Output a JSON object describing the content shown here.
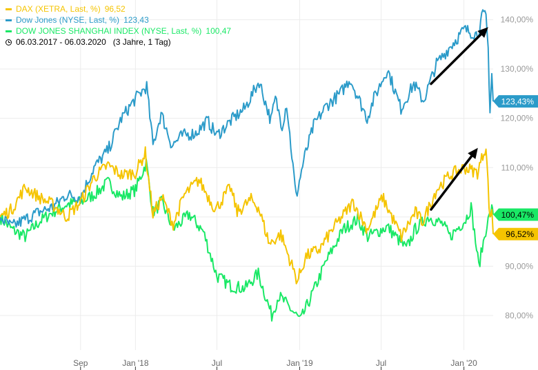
{
  "legend": {
    "items": [
      {
        "label": "DAX (XETRA, Last, %)",
        "value": "96,52",
        "color": "#f5c400"
      },
      {
        "label": "Dow Jones (NYSE, Last, %)",
        "value": "123,43",
        "color": "#2b9bc9"
      },
      {
        "label": "DOW JONES SHANGHAI INDEX (NYSE, Last, %)",
        "value": "100,47",
        "color": "#19e865"
      }
    ],
    "period": "06.03.2017 - 06.03.2020",
    "range": "(3 Jahre, 1 Tag)"
  },
  "chart_data": {
    "type": "line",
    "x_axis_labels": [
      "Sep",
      "Jan '18",
      "Jul",
      "Jan '19",
      "Jul",
      "Jan '20"
    ],
    "x_axis_dates": [
      "2017-09-01",
      "2018-01-01",
      "2018-07-01",
      "2019-01-01",
      "2019-07-01",
      "2020-01-01"
    ],
    "x_range": [
      "2017-03-06",
      "2020-03-06"
    ],
    "y_ticks": [
      80,
      90,
      100,
      110,
      120,
      130,
      140
    ],
    "y_tick_labels": [
      "80,00%",
      "90,00%",
      "100,00%",
      "110,00%",
      "120,00%",
      "130,00%",
      "140,00%"
    ],
    "y_range": [
      73,
      144
    ],
    "grid": true,
    "legend_position": "top-left",
    "series": [
      {
        "name": "Dow Jones (NYSE, Last, %)",
        "color": "#2b9bc9",
        "last_label": "123,43%",
        "points": [
          [
            "2017-03-06",
            100.0
          ],
          [
            "2017-04-01",
            98.0
          ],
          [
            "2017-05-01",
            99.5
          ],
          [
            "2017-06-01",
            101.0
          ],
          [
            "2017-07-01",
            102.0
          ],
          [
            "2017-08-01",
            104.5
          ],
          [
            "2017-09-01",
            104.0
          ],
          [
            "2017-10-01",
            110.0
          ],
          [
            "2017-11-01",
            113.5
          ],
          [
            "2017-12-01",
            120.0
          ],
          [
            "2018-01-01",
            124.0
          ],
          [
            "2018-01-26",
            126.5
          ],
          [
            "2018-02-09",
            114.5
          ],
          [
            "2018-02-27",
            121.0
          ],
          [
            "2018-03-23",
            114.5
          ],
          [
            "2018-04-15",
            116.5
          ],
          [
            "2018-05-15",
            117.0
          ],
          [
            "2018-06-10",
            119.5
          ],
          [
            "2018-07-01",
            116.5
          ],
          [
            "2018-08-01",
            119.5
          ],
          [
            "2018-09-01",
            122.0
          ],
          [
            "2018-10-03",
            127.5
          ],
          [
            "2018-10-29",
            119.5
          ],
          [
            "2018-11-08",
            124.0
          ],
          [
            "2018-11-23",
            118.5
          ],
          [
            "2018-12-03",
            123.0
          ],
          [
            "2018-12-24",
            104.0
          ],
          [
            "2019-01-10",
            111.5
          ],
          [
            "2019-02-01",
            118.5
          ],
          [
            "2019-03-01",
            122.5
          ],
          [
            "2019-04-01",
            125.0
          ],
          [
            "2019-04-23",
            128.0
          ],
          [
            "2019-05-31",
            120.0
          ],
          [
            "2019-06-15",
            124.0
          ],
          [
            "2019-07-15",
            130.0
          ],
          [
            "2019-08-14",
            122.0
          ],
          [
            "2019-09-12",
            127.0
          ],
          [
            "2019-10-03",
            123.5
          ],
          [
            "2019-11-01",
            131.0
          ],
          [
            "2019-12-01",
            134.5
          ],
          [
            "2020-01-02",
            138.0
          ],
          [
            "2020-01-31",
            137.0
          ],
          [
            "2020-02-12",
            141.0
          ],
          [
            "2020-02-19",
            140.5
          ],
          [
            "2020-02-24",
            134.0
          ],
          [
            "2020-02-28",
            121.5
          ],
          [
            "2020-03-03",
            129.0
          ],
          [
            "2020-03-06",
            123.43
          ]
        ]
      },
      {
        "name": "DAX (XETRA, Last, %)",
        "color": "#f5c400",
        "last_label": "96,52%",
        "points": [
          [
            "2017-03-06",
            100.0
          ],
          [
            "2017-04-01",
            101.5
          ],
          [
            "2017-05-01",
            106.0
          ],
          [
            "2017-06-01",
            104.0
          ],
          [
            "2017-07-01",
            102.5
          ],
          [
            "2017-08-01",
            100.0
          ],
          [
            "2017-09-01",
            103.0
          ],
          [
            "2017-10-01",
            108.0
          ],
          [
            "2017-11-01",
            110.5
          ],
          [
            "2017-12-01",
            108.5
          ],
          [
            "2018-01-01",
            109.0
          ],
          [
            "2018-01-23",
            113.0
          ],
          [
            "2018-02-09",
            100.5
          ],
          [
            "2018-03-01",
            104.0
          ],
          [
            "2018-03-26",
            98.5
          ],
          [
            "2018-04-20",
            104.5
          ],
          [
            "2018-05-22",
            107.5
          ],
          [
            "2018-06-28",
            101.5
          ],
          [
            "2018-07-31",
            106.0
          ],
          [
            "2018-08-15",
            101.0
          ],
          [
            "2018-09-15",
            103.5
          ],
          [
            "2018-10-01",
            102.0
          ],
          [
            "2018-10-26",
            94.5
          ],
          [
            "2018-11-20",
            96.5
          ],
          [
            "2018-12-27",
            87.0
          ],
          [
            "2019-01-15",
            92.0
          ],
          [
            "2019-02-15",
            93.5
          ],
          [
            "2019-03-15",
            97.5
          ],
          [
            "2019-04-30",
            103.0
          ],
          [
            "2019-05-31",
            97.5
          ],
          [
            "2019-07-04",
            104.0
          ],
          [
            "2019-08-15",
            96.0
          ],
          [
            "2019-09-15",
            101.0
          ],
          [
            "2019-10-01",
            99.0
          ],
          [
            "2019-11-01",
            105.5
          ],
          [
            "2019-12-01",
            108.5
          ],
          [
            "2020-01-02",
            110.0
          ],
          [
            "2020-01-31",
            109.0
          ],
          [
            "2020-02-19",
            114.5
          ],
          [
            "2020-02-28",
            99.0
          ],
          [
            "2020-03-03",
            102.0
          ],
          [
            "2020-03-06",
            96.52
          ]
        ]
      },
      {
        "name": "DOW JONES SHANGHAI INDEX (NYSE, Last, %)",
        "color": "#19e865",
        "last_label": "100,47%",
        "points": [
          [
            "2017-03-06",
            100.0
          ],
          [
            "2017-04-01",
            97.5
          ],
          [
            "2017-05-01",
            96.0
          ],
          [
            "2017-06-01",
            99.0
          ],
          [
            "2017-07-01",
            101.0
          ],
          [
            "2017-08-01",
            102.5
          ],
          [
            "2017-09-01",
            103.0
          ],
          [
            "2017-10-01",
            104.5
          ],
          [
            "2017-11-01",
            107.0
          ],
          [
            "2017-12-01",
            104.0
          ],
          [
            "2018-01-01",
            105.5
          ],
          [
            "2018-01-25",
            111.0
          ],
          [
            "2018-02-09",
            101.0
          ],
          [
            "2018-03-01",
            103.0
          ],
          [
            "2018-03-26",
            97.5
          ],
          [
            "2018-05-01",
            100.5
          ],
          [
            "2018-06-01",
            97.0
          ],
          [
            "2018-07-01",
            88.0
          ],
          [
            "2018-08-01",
            86.0
          ],
          [
            "2018-09-01",
            85.5
          ],
          [
            "2018-10-01",
            88.5
          ],
          [
            "2018-10-31",
            80.0
          ],
          [
            "2018-11-15",
            84.0
          ],
          [
            "2018-12-01",
            82.5
          ],
          [
            "2019-01-03",
            79.0
          ],
          [
            "2019-02-01",
            85.0
          ],
          [
            "2019-03-01",
            91.0
          ],
          [
            "2019-04-08",
            97.5
          ],
          [
            "2019-05-10",
            99.5
          ],
          [
            "2019-06-01",
            96.0
          ],
          [
            "2019-07-15",
            98.0
          ],
          [
            "2019-08-26",
            93.5
          ],
          [
            "2019-09-15",
            97.5
          ],
          [
            "2019-10-15",
            100.0
          ],
          [
            "2019-11-15",
            98.5
          ],
          [
            "2019-12-01",
            96.0
          ],
          [
            "2020-01-05",
            99.5
          ],
          [
            "2020-01-17",
            102.0
          ],
          [
            "2020-02-03",
            90.0
          ],
          [
            "2020-02-21",
            98.5
          ],
          [
            "2020-03-03",
            101.5
          ],
          [
            "2020-03-06",
            100.47
          ]
        ]
      }
    ],
    "annotations": [
      {
        "type": "arrow",
        "color": "#000000",
        "from": [
          "2019-10-20",
          127.0
        ],
        "to": [
          "2020-02-24",
          138.5
        ]
      },
      {
        "type": "arrow",
        "color": "#000000",
        "from": [
          "2019-10-20",
          101.5
        ],
        "to": [
          "2020-02-01",
          114.0
        ]
      }
    ]
  }
}
